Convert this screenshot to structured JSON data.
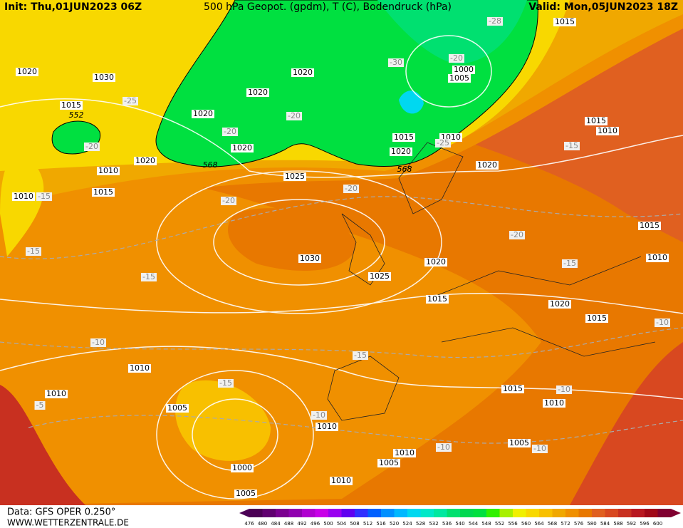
{
  "header": {
    "init": "Init: Thu,01JUN2023 06Z",
    "title": "500 hPa Geopot. (gpdm), T (C), Bodendruck (hPa)",
    "valid": "Valid: Mon,05JUN2023 18Z"
  },
  "footer": {
    "data_source": "Data: GFS OPER 0.250°",
    "website": "WWW.WETTERZENTRALE.DE"
  },
  "map": {
    "pressure_labels": [
      "1020",
      "1030",
      "1015",
      "1010",
      "1020",
      "1015",
      "1010",
      "1020",
      "1020",
      "1020",
      "1020",
      "1025",
      "1030",
      "1025",
      "1020",
      "1015",
      "1015",
      "1020",
      "1010",
      "1000",
      "1005",
      "1015",
      "1020",
      "1015",
      "1010",
      "1015",
      "1010",
      "1020",
      "1015",
      "1010",
      "1010",
      "1005",
      "1000",
      "1005",
      "1010",
      "1010",
      "1005",
      "1010",
      "1015",
      "1010",
      "1005"
    ],
    "temperature_labels": [
      "-25",
      "-20",
      "-15",
      "-15",
      "-15",
      "-10",
      "-5",
      "-20",
      "-20",
      "-20",
      "-20",
      "-30",
      "-20",
      "-28",
      "-25",
      "-15",
      "-20",
      "-15",
      "-10",
      "-15",
      "-15",
      "-10",
      "-10",
      "-10",
      "-10"
    ],
    "geopotential_labels": [
      "552",
      "568",
      "568"
    ]
  },
  "colorbar": {
    "levels": [
      476,
      480,
      484,
      488,
      492,
      496,
      500,
      504,
      508,
      512,
      516,
      520,
      524,
      528,
      532,
      536,
      540,
      544,
      548,
      552,
      556,
      560,
      564,
      568,
      572,
      576,
      580,
      584,
      588,
      592,
      596,
      600
    ],
    "colors": [
      "#4b0055",
      "#600070",
      "#7a0090",
      "#9000b0",
      "#b000d0",
      "#c800e8",
      "#9a00f0",
      "#6000f0",
      "#3030ff",
      "#0060ff",
      "#0090ff",
      "#00b8ff",
      "#00d8f0",
      "#00e8c8",
      "#00e8a0",
      "#00e070",
      "#00d850",
      "#00e040",
      "#30f000",
      "#a8f000",
      "#f0f000",
      "#f8d800",
      "#f8c000",
      "#f0a800",
      "#f09000",
      "#e87800",
      "#e06020",
      "#d84820",
      "#c83020",
      "#b81820",
      "#a00818",
      "#800030"
    ]
  }
}
